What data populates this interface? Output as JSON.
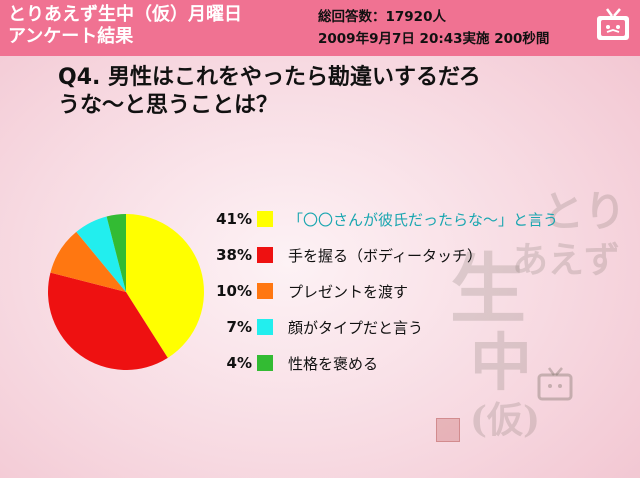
{
  "header": {
    "title_line1": "とりあえず生中（仮）月曜日",
    "title_line2": "アンケート結果",
    "respondents": "総回答数：17920人",
    "datetime": "2009年9月7日 20:43実施 200秒間"
  },
  "question": {
    "line1": "Q4. 男性はこれをやったら勘違いするだろ",
    "line2": "うな～と思うことは？"
  },
  "colors": {
    "header_bg": "#f07292",
    "accent_text": "#1aa6b0"
  },
  "chart_data": {
    "type": "pie",
    "title": "",
    "slices": [
      {
        "label": "「〇〇さんが彼氏だったらな～」と言う",
        "value": 41,
        "display": "41%",
        "color": "#ffff00"
      },
      {
        "label": "手を握る（ボディータッチ）",
        "value": 38,
        "display": "38%",
        "color": "#ee1111"
      },
      {
        "label": "プレゼントを渡す",
        "value": 10,
        "display": "10%",
        "color": "#ff7711"
      },
      {
        "label": "顔がタイプだと言う",
        "value": 7,
        "display": "7%",
        "color": "#22eeee"
      },
      {
        "label": "性格を褒める",
        "value": 4,
        "display": "4%",
        "color": "#33bb33"
      }
    ],
    "legend_placement": "right"
  },
  "watermark": {
    "lines": [
      "とり",
      "あえず",
      "生",
      "中",
      "(仮)"
    ],
    "stamp_text": "生中"
  }
}
